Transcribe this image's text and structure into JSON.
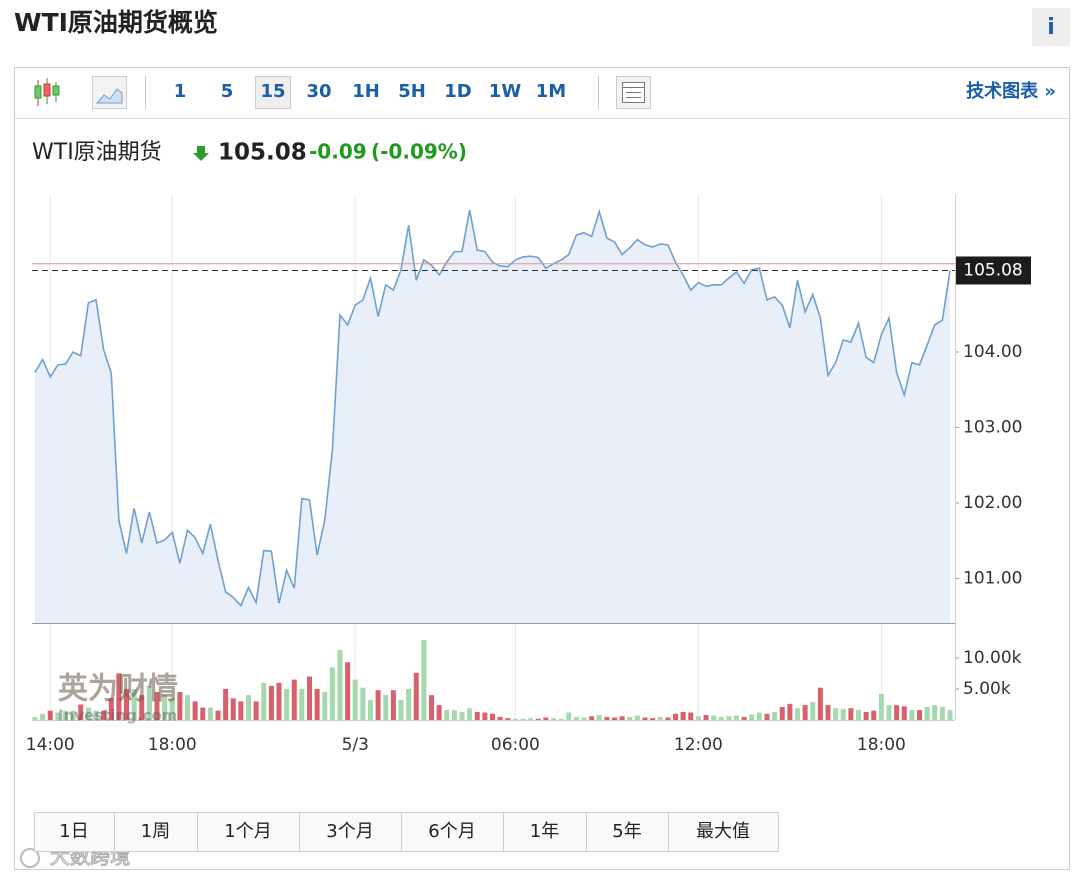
{
  "header": {
    "title": "WTI原油期货概览",
    "info": "i"
  },
  "toolbar": {
    "intervals": [
      "1",
      "5",
      "15",
      "30",
      "1H",
      "5H",
      "1D",
      "1W",
      "1M"
    ],
    "active_interval": 2,
    "tech_chart": "技术图表 »"
  },
  "quote": {
    "name": "WTI原油期货",
    "last": "105.08",
    "change": "-0.09",
    "change_pct": "(-0.09%)"
  },
  "chart_data": [
    {
      "type": "area",
      "color": "#6fa0cf",
      "fill": "#e9eff8",
      "values": [
        103.73,
        103.9,
        103.67,
        103.83,
        103.84,
        104.0,
        103.95,
        104.65,
        104.69,
        104.03,
        103.72,
        101.77,
        101.33,
        101.93,
        101.47,
        101.88,
        101.47,
        101.51,
        101.61,
        101.2,
        101.64,
        101.54,
        101.33,
        101.72,
        101.24,
        100.82,
        100.75,
        100.64,
        100.88,
        100.68,
        101.37,
        101.36,
        100.67,
        101.11,
        100.87,
        102.06,
        102.04,
        101.31,
        101.77,
        102.7,
        104.49,
        104.36,
        104.62,
        104.69,
        104.98,
        104.47,
        104.89,
        104.82,
        105.09,
        105.68,
        104.95,
        105.22,
        105.15,
        105.02,
        105.19,
        105.33,
        105.33,
        105.88,
        105.35,
        105.33,
        105.19,
        105.14,
        105.13,
        105.22,
        105.26,
        105.27,
        105.25,
        105.11,
        105.17,
        105.22,
        105.29,
        105.55,
        105.58,
        105.53,
        105.86,
        105.51,
        105.46,
        105.29,
        105.38,
        105.49,
        105.42,
        105.39,
        105.43,
        105.42,
        105.19,
        105.02,
        104.82,
        104.92,
        104.87,
        104.89,
        104.89,
        104.98,
        105.06,
        104.91,
        105.09,
        105.11,
        104.69,
        104.73,
        104.62,
        104.32,
        104.95,
        104.53,
        104.76,
        104.45,
        103.69,
        103.86,
        104.16,
        104.13,
        104.38,
        103.93,
        103.86,
        104.23,
        104.45,
        103.73,
        103.43,
        103.86,
        103.83,
        104.09,
        104.36,
        104.42,
        105.08
      ],
      "xlim": [
        0,
        120
      ],
      "xticks": [
        {
          "value": 2,
          "label": "14:00"
        },
        {
          "value": 18,
          "label": "18:00"
        },
        {
          "value": 42,
          "label": "5/3"
        },
        {
          "value": 63,
          "label": "06:00"
        },
        {
          "value": 87,
          "label": "12:00"
        },
        {
          "value": 111,
          "label": "18:00"
        }
      ],
      "ylim": [
        100.41,
        106.08
      ],
      "yticks": [
        {
          "value": 101,
          "label": "101.00"
        },
        {
          "value": 102,
          "label": "102.00"
        },
        {
          "value": 103,
          "label": "103.00"
        },
        {
          "value": 104,
          "label": "104.00"
        }
      ],
      "last_price": {
        "value": 105.08,
        "label": "105.08"
      },
      "prev_close": 105.17
    },
    {
      "type": "bar",
      "up_color": "#a6d8ad",
      "down_color": "#d9606b",
      "values": [
        500,
        1000,
        1500,
        1200,
        1500,
        1500,
        2500,
        2000,
        1500,
        1500,
        3500,
        7500,
        5000,
        5000,
        4000,
        5500,
        4500,
        4000,
        3500,
        4500,
        4000,
        3000,
        2000,
        2000,
        1500,
        5000,
        3500,
        3000,
        4000,
        3000,
        6000,
        5500,
        6000,
        5000,
        6500,
        5000,
        7000,
        5000,
        4500,
        8500,
        11300,
        9300,
        6500,
        5200,
        3200,
        4800,
        4000,
        4800,
        3200,
        5000,
        7600,
        12900,
        4000,
        2400,
        1600,
        1600,
        1300,
        1900,
        1300,
        1200,
        1000,
        500,
        300,
        200,
        200,
        300,
        200,
        400,
        300,
        200,
        1200,
        500,
        400,
        600,
        800,
        500,
        400,
        600,
        500,
        700,
        400,
        300,
        500,
        400,
        1000,
        1300,
        1200,
        600,
        800,
        700,
        500,
        600,
        700,
        500,
        900,
        1200,
        1000,
        1300,
        2100,
        2600,
        1900,
        2400,
        2900,
        5200,
        2400,
        1900,
        1800,
        1900,
        1600,
        1300,
        1500,
        4200,
        2400,
        2400,
        2200,
        1600,
        1600,
        2100,
        2400,
        2100,
        1600
      ],
      "ylim": [
        0,
        14500
      ],
      "yticks": [
        {
          "value": 5000,
          "label": "5.00k"
        },
        {
          "value": 10000,
          "label": "10.00k"
        }
      ]
    }
  ],
  "ranges": [
    "1日",
    "1周",
    "1个月",
    "3个月",
    "6个月",
    "1年",
    "5年",
    "最大值"
  ],
  "watermarks": {
    "chart": "英为财情",
    "chart_sub": "Investing.com",
    "footer": "大数跨境"
  }
}
